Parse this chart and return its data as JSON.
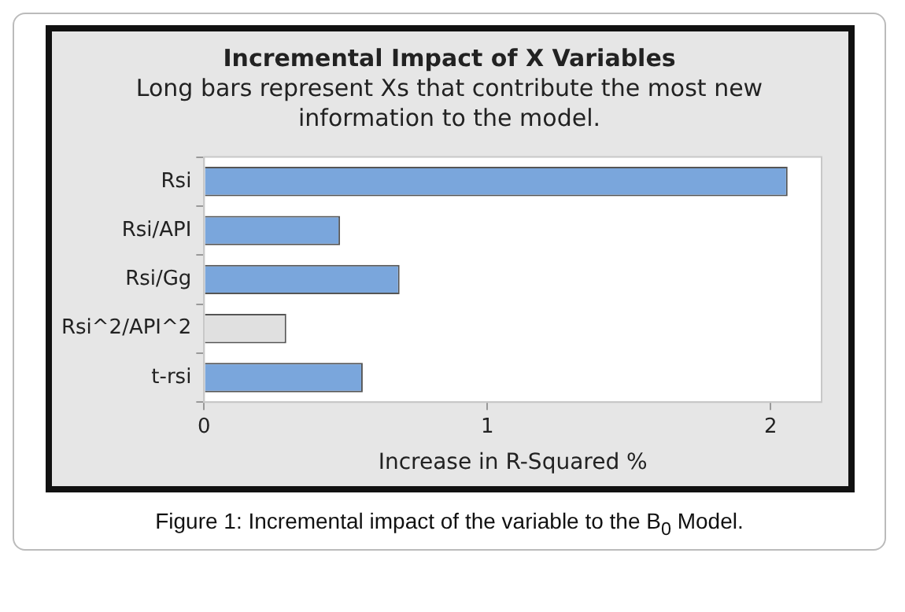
{
  "chart_data": {
    "type": "bar",
    "orientation": "horizontal",
    "title": "Incremental Impact of X Variables",
    "subtitle": "Long bars represent Xs that contribute the most new information to the model.",
    "xlabel": "Increase in R-Squared %",
    "categories": [
      "Rsi",
      "Rsi/API",
      "Rsi/Gg",
      "Rsi^2/API^2",
      "t-rsi"
    ],
    "values": [
      2.06,
      0.48,
      0.69,
      0.29,
      0.56
    ],
    "colors": [
      "#7aa6dc",
      "#7aa6dc",
      "#7aa6dc",
      "#e0e0e0",
      "#7aa6dc"
    ],
    "xlim": [
      0,
      2.18
    ],
    "xticks": [
      0,
      1,
      2
    ],
    "grid": false,
    "annotations": [
      "Figure 1: Incremental impact of the variable to the B$_{0}$ Model."
    ]
  }
}
